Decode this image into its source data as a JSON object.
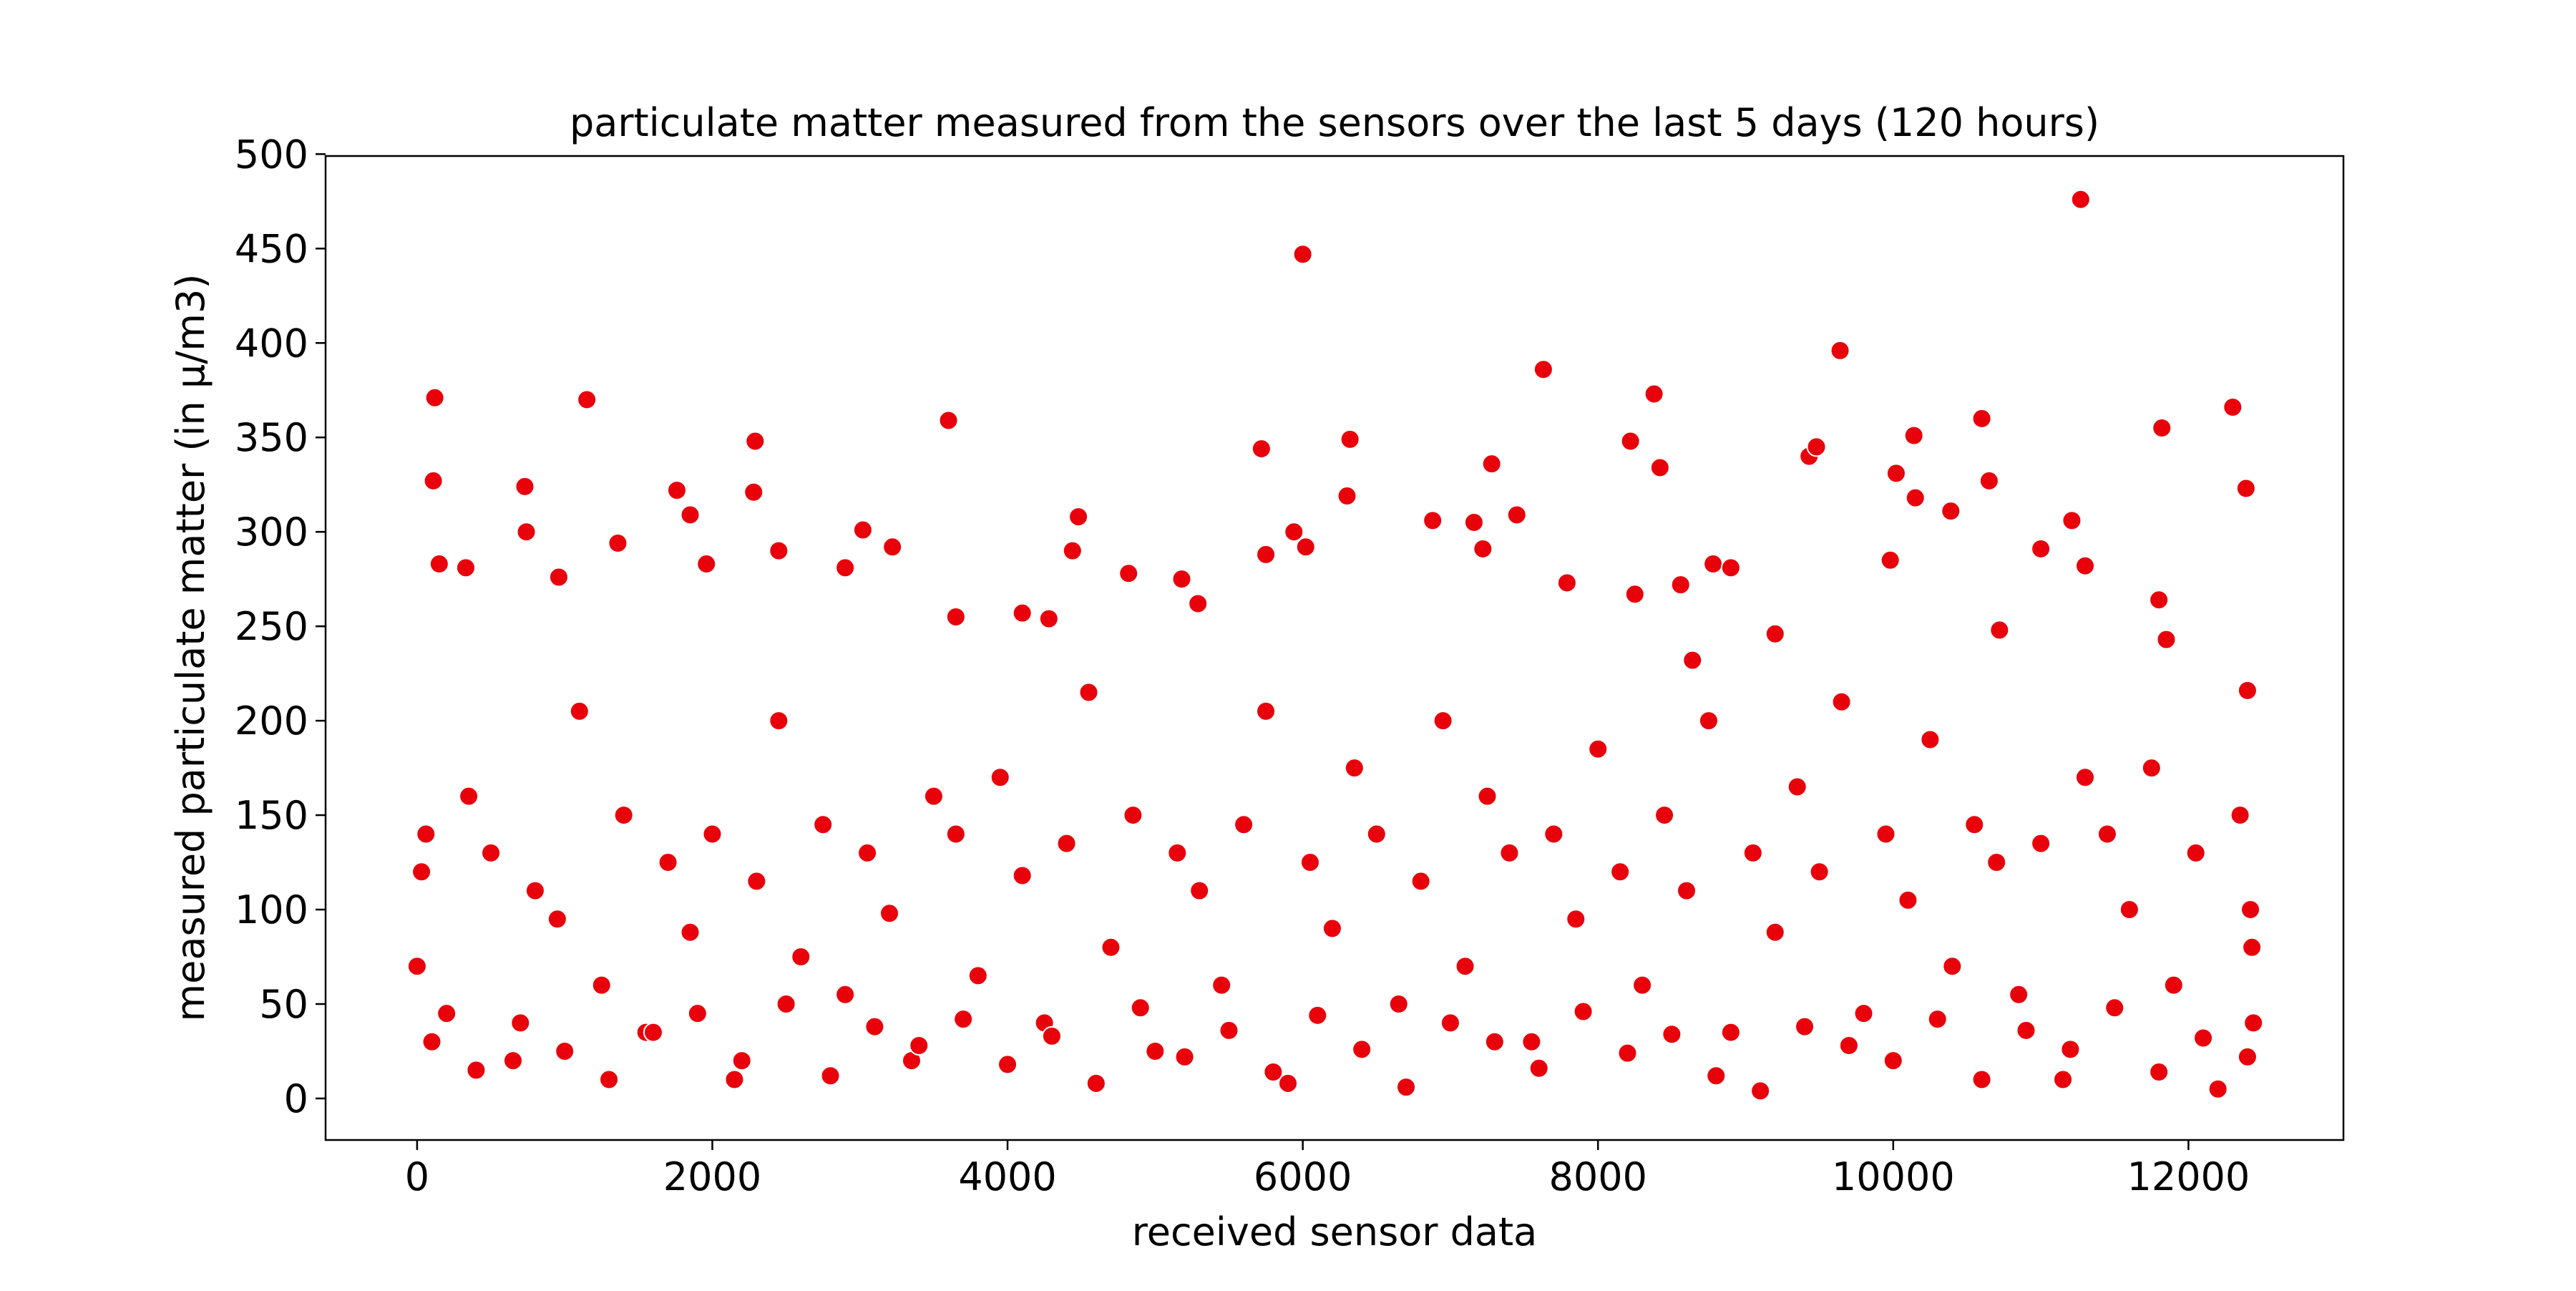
{
  "chart_data": {
    "type": "scatter",
    "title": "particulate matter measured from the sensors over the last 5 days (120 hours)",
    "xlabel": "received sensor data",
    "ylabel": "measured particulate matter (in µ/m3)",
    "color": "#e8000b",
    "xlim": [
      -620,
      13050
    ],
    "ylim": [
      -22,
      499
    ],
    "xticks": [
      0,
      2000,
      4000,
      6000,
      8000,
      10000,
      12000
    ],
    "yticks": [
      0,
      50,
      100,
      150,
      200,
      250,
      300,
      350,
      400,
      450,
      500
    ],
    "x": [
      120,
      110,
      150,
      1150,
      730,
      740,
      330,
      960,
      1360,
      1760,
      1850,
      1960,
      2280,
      2290,
      2450,
      2900,
      3020,
      3220,
      3600,
      3650,
      4100,
      4280,
      4480,
      4440,
      4820,
      5180,
      5290,
      5720,
      5750,
      5940,
      6000,
      6020,
      6300,
      6320,
      6880,
      7160,
      7220,
      7280,
      7450,
      7630,
      7790,
      8220,
      8250,
      8380,
      8420,
      8560,
      8780,
      8900,
      9430,
      9480,
      9640,
      9980,
      10020,
      10140,
      10150,
      10390,
      10600,
      10650,
      11000,
      11210,
      11270,
      11300,
      11820,
      12300,
      12390,
      12400,
      11800,
      11850,
      10720,
      9200,
      8640,
      0,
      30,
      60,
      200,
      350,
      500,
      650,
      800,
      950,
      1100,
      1250,
      1400,
      1550,
      1700,
      1850,
      2000,
      2150,
      2300,
      2450,
      2600,
      2750,
      2900,
      3050,
      3200,
      3350,
      3500,
      3650,
      3800,
      3950,
      4100,
      4250,
      4400,
      4550,
      4700,
      4850,
      5000,
      5150,
      5300,
      5450,
      5600,
      5750,
      5900,
      6050,
      6200,
      6350,
      6500,
      6650,
      6800,
      6950,
      7100,
      7250,
      7400,
      7550,
      7700,
      7850,
      8000,
      8150,
      8300,
      8450,
      8600,
      8750,
      8900,
      9050,
      9200,
      9350,
      9500,
      9650,
      9800,
      9950,
      10100,
      10250,
      10400,
      10550,
      10700,
      10850,
      11000,
      11150,
      11300,
      11450,
      11600,
      11750,
      11900,
      12050,
      12200,
      12350,
      12420,
      12430,
      12440,
      100,
      400,
      700,
      1000,
      1300,
      1600,
      1900,
      2200,
      2500,
      2800,
      3100,
      3400,
      3700,
      4000,
      4300,
      4600,
      4900,
      5200,
      5500,
      5800,
      6100,
      6400,
      6700,
      7000,
      7300,
      7600,
      7900,
      8200,
      8500,
      8800,
      9100,
      9400,
      9700,
      10000,
      10300,
      10600,
      10900,
      11200,
      11500,
      11800,
      12100,
      12400
    ],
    "values": [
      371,
      327,
      283,
      370,
      324,
      300,
      281,
      276,
      294,
      322,
      309,
      283,
      321,
      348,
      290,
      281,
      301,
      292,
      359,
      255,
      257,
      254,
      308,
      290,
      278,
      275,
      262,
      344,
      288,
      300,
      447,
      292,
      319,
      349,
      306,
      305,
      291,
      336,
      309,
      386,
      273,
      348,
      267,
      373,
      334,
      272,
      283,
      281,
      340,
      345,
      396,
      285,
      331,
      351,
      318,
      311,
      360,
      327,
      291,
      306,
      476,
      282,
      355,
      366,
      323,
      216,
      264,
      243,
      248,
      246,
      232,
      70,
      120,
      140,
      45,
      160,
      130,
      20,
      110,
      95,
      205,
      60,
      150,
      35,
      125,
      88,
      140,
      10,
      115,
      200,
      75,
      145,
      55,
      130,
      98,
      20,
      160,
      140,
      65,
      170,
      118,
      40,
      135,
      215,
      80,
      150,
      25,
      130,
      110,
      60,
      145,
      205,
      8,
      125,
      90,
      175,
      140,
      50,
      115,
      200,
      70,
      160,
      130,
      30,
      140,
      95,
      185,
      120,
      60,
      150,
      110,
      200,
      35,
      130,
      88,
      165,
      120,
      210,
      45,
      140,
      105,
      190,
      70,
      145,
      125,
      55,
      135,
      10,
      170,
      140,
      100,
      175,
      60,
      130,
      5,
      150,
      100,
      80,
      40,
      30,
      15,
      40,
      25,
      10,
      35,
      45,
      20,
      50,
      12,
      38,
      28,
      42,
      18,
      33,
      8,
      48,
      22,
      36,
      14,
      44,
      26,
      6,
      40,
      30,
      16,
      46,
      24,
      34,
      12,
      4,
      38,
      28,
      20,
      42,
      10,
      36,
      26,
      48,
      14,
      32,
      22
    ]
  }
}
